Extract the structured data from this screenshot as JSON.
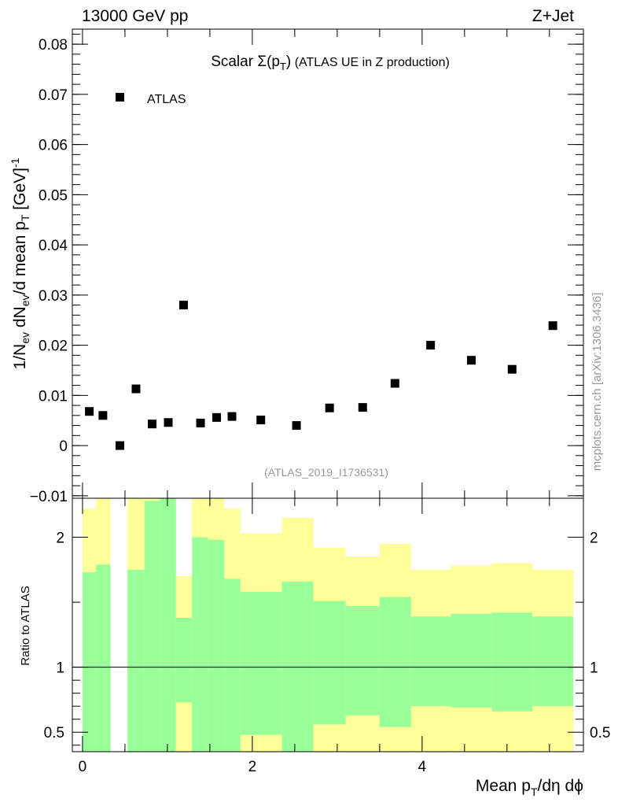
{
  "header": {
    "left": "13000 GeV pp",
    "right": "Z+Jet"
  },
  "watermark": "mcplots.cern.ch [arXiv:1306.3436]",
  "chart_data": [
    {
      "type": "scatter",
      "title": "Scalar Σ(p_T) (ATLAS UE in Z production)",
      "title_main": "Scalar ",
      "title_sigma": "Σ(p",
      "title_sub": "T",
      "title_close": ")",
      "title_rest": " (ATLAS UE in Z production)",
      "analysis_tag": "(ATLAS_2019_I1736531)",
      "ylabel": "1/N_ev dN_ev/d mean p_T [GeV]^-1",
      "ylabel_parts": {
        "a": "1/N",
        "a_sub": "ev",
        "b": " dN",
        "b_sub": "ev",
        "c": "/d mean p",
        "c_sub": "T",
        "d": " [GeV]",
        "d_sup": "-1"
      },
      "xlim": [
        -0.12,
        5.9
      ],
      "ylim": [
        -0.0105,
        0.083
      ],
      "yticks": [
        -0.01,
        0,
        0.01,
        0.02,
        0.03,
        0.04,
        0.05,
        0.06,
        0.07,
        0.08
      ],
      "ytick_labels": [
        "−0.01",
        "0",
        "0.01",
        "0.02",
        "0.03",
        "0.04",
        "0.05",
        "0.06",
        "0.07",
        "0.08"
      ],
      "legend": {
        "placement": "top-left",
        "entries": [
          "ATLAS"
        ]
      },
      "series": [
        {
          "name": "ATLAS",
          "x": [
            0.08,
            0.24,
            0.44,
            0.63,
            0.82,
            1.01,
            1.19,
            1.39,
            1.58,
            1.76,
            2.1,
            2.52,
            2.91,
            3.3,
            3.68,
            4.1,
            4.58,
            5.06,
            5.54
          ],
          "y": [
            0.0068,
            0.006,
            0.0,
            0.0113,
            0.0043,
            0.0046,
            0.028,
            0.0045,
            0.0056,
            0.0058,
            0.0051,
            0.004,
            0.0075,
            0.0076,
            0.0124,
            0.02,
            0.017,
            0.0152,
            0.0239
          ]
        }
      ]
    },
    {
      "type": "area",
      "ylabel": "Ratio to ATLAS",
      "xlabel": "Mean p_T/dη dϕ",
      "xlabel_parts": {
        "a": "Mean p",
        "a_sub": "T",
        "b": "/dη dϕ"
      },
      "xlim": [
        -0.12,
        5.9
      ],
      "ylim": [
        0.35,
        2.3
      ],
      "xticks": [
        0,
        2,
        4
      ],
      "xtick_labels": [
        "0",
        "2",
        "4"
      ],
      "yticks": [
        0.5,
        1,
        2
      ],
      "ytick_labels": [
        "0.5",
        "1",
        "2"
      ],
      "reference_line": 1,
      "colors": {
        "inner_band": "#99ff99",
        "outer_band": "#ffff99"
      },
      "bins": [
        {
          "lo": 0.0,
          "hi": 0.16,
          "inner": [
            0.0,
            1.73
          ],
          "outer": [
            0.0,
            2.22
          ]
        },
        {
          "lo": 0.16,
          "hi": 0.33,
          "inner": [
            0.0,
            1.79
          ],
          "outer": [
            0.0,
            2.3
          ]
        },
        {
          "lo": 0.53,
          "hi": 0.73,
          "inner": [
            0.0,
            1.75
          ],
          "outer": [
            0.0,
            2.3
          ]
        },
        {
          "lo": 0.73,
          "hi": 0.91,
          "inner": [
            0.0,
            2.28
          ],
          "outer": [
            0.0,
            2.3
          ]
        },
        {
          "lo": 0.91,
          "hi": 1.1,
          "inner": [
            0.0,
            2.3
          ],
          "outer": [
            0.0,
            2.3
          ]
        },
        {
          "lo": 1.1,
          "hi": 1.29,
          "inner": [
            0.0,
            1.38
          ],
          "outer": [
            0.0,
            1.7
          ]
        },
        {
          "lo": 1.29,
          "hi": 1.48,
          "inner": [
            0.0,
            2.0
          ],
          "outer": [
            0.0,
            2.3
          ]
        },
        {
          "lo": 1.48,
          "hi": 1.67,
          "inner": [
            0.0,
            1.98
          ],
          "outer": [
            0.0,
            2.3
          ]
        },
        {
          "lo": 1.67,
          "hi": 1.86,
          "inner": [
            0.0,
            1.68
          ],
          "outer": [
            0.0,
            2.22
          ]
        },
        {
          "lo": 1.86,
          "hi": 2.35,
          "inner": [
            0.0,
            1.58
          ],
          "outer": [
            0.0,
            2.03
          ]
        },
        {
          "lo": 2.35,
          "hi": 2.72,
          "inner": [
            0.0,
            1.66
          ],
          "outer": [
            0.0,
            2.15
          ]
        },
        {
          "lo": 2.72,
          "hi": 3.1,
          "inner": [
            0.0,
            1.51
          ],
          "outer": [
            0.0,
            1.92
          ]
        },
        {
          "lo": 3.1,
          "hi": 3.5,
          "inner": [
            0.0,
            1.47
          ],
          "outer": [
            0.0,
            1.85
          ]
        },
        {
          "lo": 3.5,
          "hi": 3.87,
          "inner": [
            0.0,
            1.54
          ],
          "outer": [
            0.0,
            1.95
          ]
        },
        {
          "lo": 3.87,
          "hi": 4.34,
          "inner": [
            0.0,
            1.39
          ],
          "outer": [
            0.0,
            1.75
          ]
        },
        {
          "lo": 4.34,
          "hi": 4.82,
          "inner": [
            0.0,
            1.41
          ],
          "outer": [
            0.0,
            1.78
          ]
        },
        {
          "lo": 4.82,
          "hi": 5.3,
          "inner": [
            0.0,
            1.42
          ],
          "outer": [
            0.0,
            1.8
          ]
        },
        {
          "lo": 5.3,
          "hi": 5.78,
          "inner": [
            0.0,
            1.39
          ],
          "outer": [
            0.0,
            1.75
          ]
        }
      ],
      "lower_edges": [
        {
          "lo": 0.0,
          "hi": 0.16,
          "inner": 0.0,
          "outer": 0.0
        },
        {
          "lo": 0.16,
          "hi": 0.33,
          "inner": 0.0,
          "outer": 0.0
        },
        {
          "lo": 0.53,
          "hi": 0.73,
          "inner": 0.0,
          "outer": 0.0
        },
        {
          "lo": 0.73,
          "hi": 0.91,
          "inner": 0.0,
          "outer": 0.0
        },
        {
          "lo": 0.91,
          "hi": 1.1,
          "inner": 0.0,
          "outer": 0.0
        },
        {
          "lo": 1.1,
          "hi": 1.29,
          "inner": 0.73,
          "outer": 0.0
        },
        {
          "lo": 1.29,
          "hi": 1.48,
          "inner": 0.0,
          "outer": 0.0
        },
        {
          "lo": 1.48,
          "hi": 1.67,
          "inner": 0.0,
          "outer": 0.0
        },
        {
          "lo": 1.67,
          "hi": 1.86,
          "inner": 0.0,
          "outer": 0.0
        },
        {
          "lo": 1.86,
          "hi": 2.35,
          "inner": 0.48,
          "outer": 0.0
        },
        {
          "lo": 2.35,
          "hi": 2.72,
          "inner": 0.0,
          "outer": 0.0
        },
        {
          "lo": 2.72,
          "hi": 3.1,
          "inner": 0.56,
          "outer": 0.0
        },
        {
          "lo": 3.1,
          "hi": 3.5,
          "inner": 0.63,
          "outer": 0.0
        },
        {
          "lo": 3.5,
          "hi": 3.87,
          "inner": 0.54,
          "outer": 0.0
        },
        {
          "lo": 3.87,
          "hi": 4.34,
          "inner": 0.7,
          "outer": 0.0
        },
        {
          "lo": 4.34,
          "hi": 4.82,
          "inner": 0.69,
          "outer": 0.0
        },
        {
          "lo": 4.82,
          "hi": 5.3,
          "inner": 0.66,
          "outer": 0.0
        },
        {
          "lo": 5.3,
          "hi": 5.78,
          "inner": 0.7,
          "outer": 0.0
        }
      ]
    }
  ]
}
